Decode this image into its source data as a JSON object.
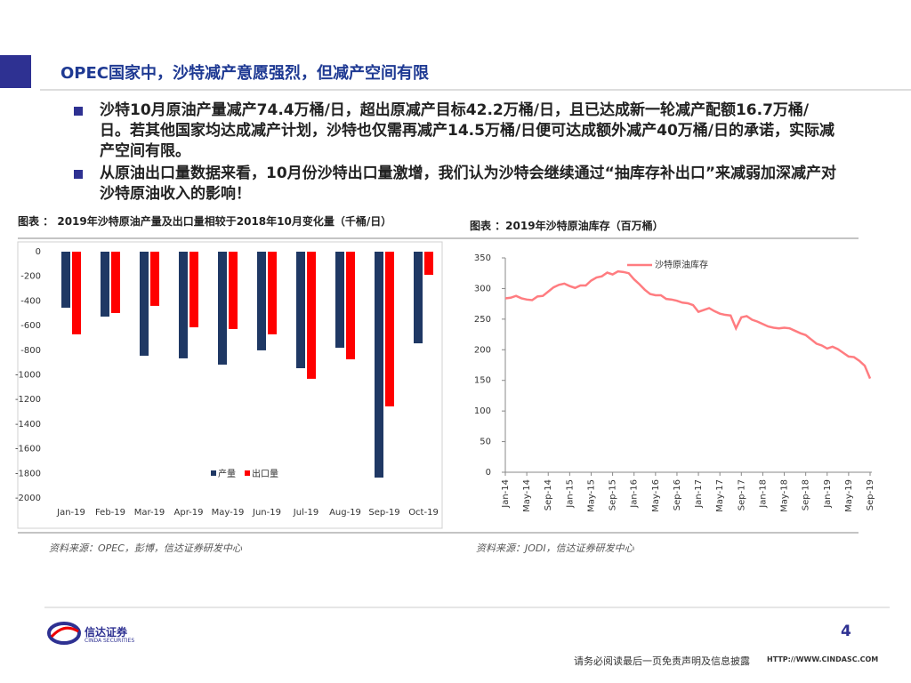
{
  "header": {
    "title": "OPEC国家中，沙特减产意愿强烈，但减产空间有限"
  },
  "bullets": [
    "沙特10月原油产量减产74.4万桶/日，超出原减产目标42.2万桶/日，且已达成新一轮减产配额16.7万桶/日。若其他国家均达成减产计划，沙特也仅需再减产14.5万桶/日便可达成额外减产40万桶/日的承诺，实际减产空间有限。",
    "从原油出口量数据来看，10月份沙特出口量激增，我们认为沙特会继续通过“抽库存补出口”来减弱加深减产对沙特原油收入的影响！"
  ],
  "chart_data": [
    {
      "type": "bar",
      "title": "图表 ： 2019年沙特原油产量及出口量相较于2018年10月变化量（千桶/日）",
      "source": "资料来源：OPEC，彭博，信达证券研发中心",
      "categories": [
        "Jan-19",
        "Feb-19",
        "Mar-19",
        "Apr-19",
        "May-19",
        "Jun-19",
        "Jul-19",
        "Aug-19",
        "Sep-19",
        "Oct-19"
      ],
      "series": [
        {
          "name": "产量",
          "color": "#1f3864",
          "values": [
            -455,
            -527,
            -845,
            -866,
            -917,
            -801,
            -946,
            -780,
            -1834,
            -744
          ]
        },
        {
          "name": "出口量",
          "color": "#ff0000",
          "values": [
            -671,
            -498,
            -440,
            -614,
            -628,
            -671,
            -1032,
            -874,
            -1256,
            -188
          ]
        }
      ],
      "ylim": [
        -2000,
        0
      ],
      "yticks": [
        0,
        -200,
        -400,
        -600,
        -800,
        -1000,
        -1200,
        -1400,
        -1600,
        -1800,
        -2000
      ],
      "grid": false
    },
    {
      "type": "line",
      "title": "图表 ：2019年沙特原油库存（百万桶）",
      "source": "资料来源：JODI，信达证券研发中心",
      "categories": [
        "Jan-14",
        null,
        null,
        null,
        "May-14",
        null,
        null,
        null,
        "Sep-14",
        null,
        null,
        null,
        "Jan-15",
        null,
        null,
        null,
        "May-15",
        null,
        null,
        null,
        "Sep-15",
        null,
        null,
        null,
        "Jan-16",
        null,
        null,
        null,
        "May-16",
        null,
        null,
        null,
        "Sep-16",
        null,
        null,
        null,
        "Jan-17",
        null,
        null,
        null,
        "May-17",
        null,
        null,
        null,
        "Sep-17",
        null,
        null,
        null,
        "Jan-18",
        null,
        null,
        null,
        "May-18",
        null,
        null,
        null,
        "Sep-18",
        null,
        null,
        null,
        "Jan-19",
        null,
        null,
        null,
        "May-19",
        null,
        null,
        null,
        "Sep-19"
      ],
      "series": [
        {
          "name": "沙特原油库存",
          "color": "#ff7c80",
          "values": [
            284,
            285,
            288,
            284,
            282,
            281,
            287,
            288,
            295,
            302,
            306,
            308,
            304,
            301,
            305,
            305,
            313,
            318,
            320,
            326,
            323,
            328,
            327,
            325,
            315,
            307,
            298,
            291,
            289,
            289,
            283,
            282,
            280,
            277,
            276,
            273,
            262,
            265,
            268,
            263,
            259,
            257,
            256,
            235,
            253,
            255,
            249,
            246,
            242,
            238,
            236,
            235,
            236,
            235,
            231,
            227,
            224,
            217,
            210,
            207,
            202,
            205,
            201,
            195,
            189,
            188,
            182,
            174,
            153
          ]
        }
      ],
      "ylim": [
        0,
        350
      ],
      "yticks": [
        0,
        50,
        100,
        150,
        200,
        250,
        300,
        350
      ],
      "grid": false
    }
  ],
  "footer": {
    "logo": "信达证券",
    "logo_en": "CINDA SECURITIES",
    "page": "4",
    "disclaimer": "请务必阅读最后一页免责声明及信息披露",
    "url": "HTTP://WWW.CINDASC.COM"
  }
}
